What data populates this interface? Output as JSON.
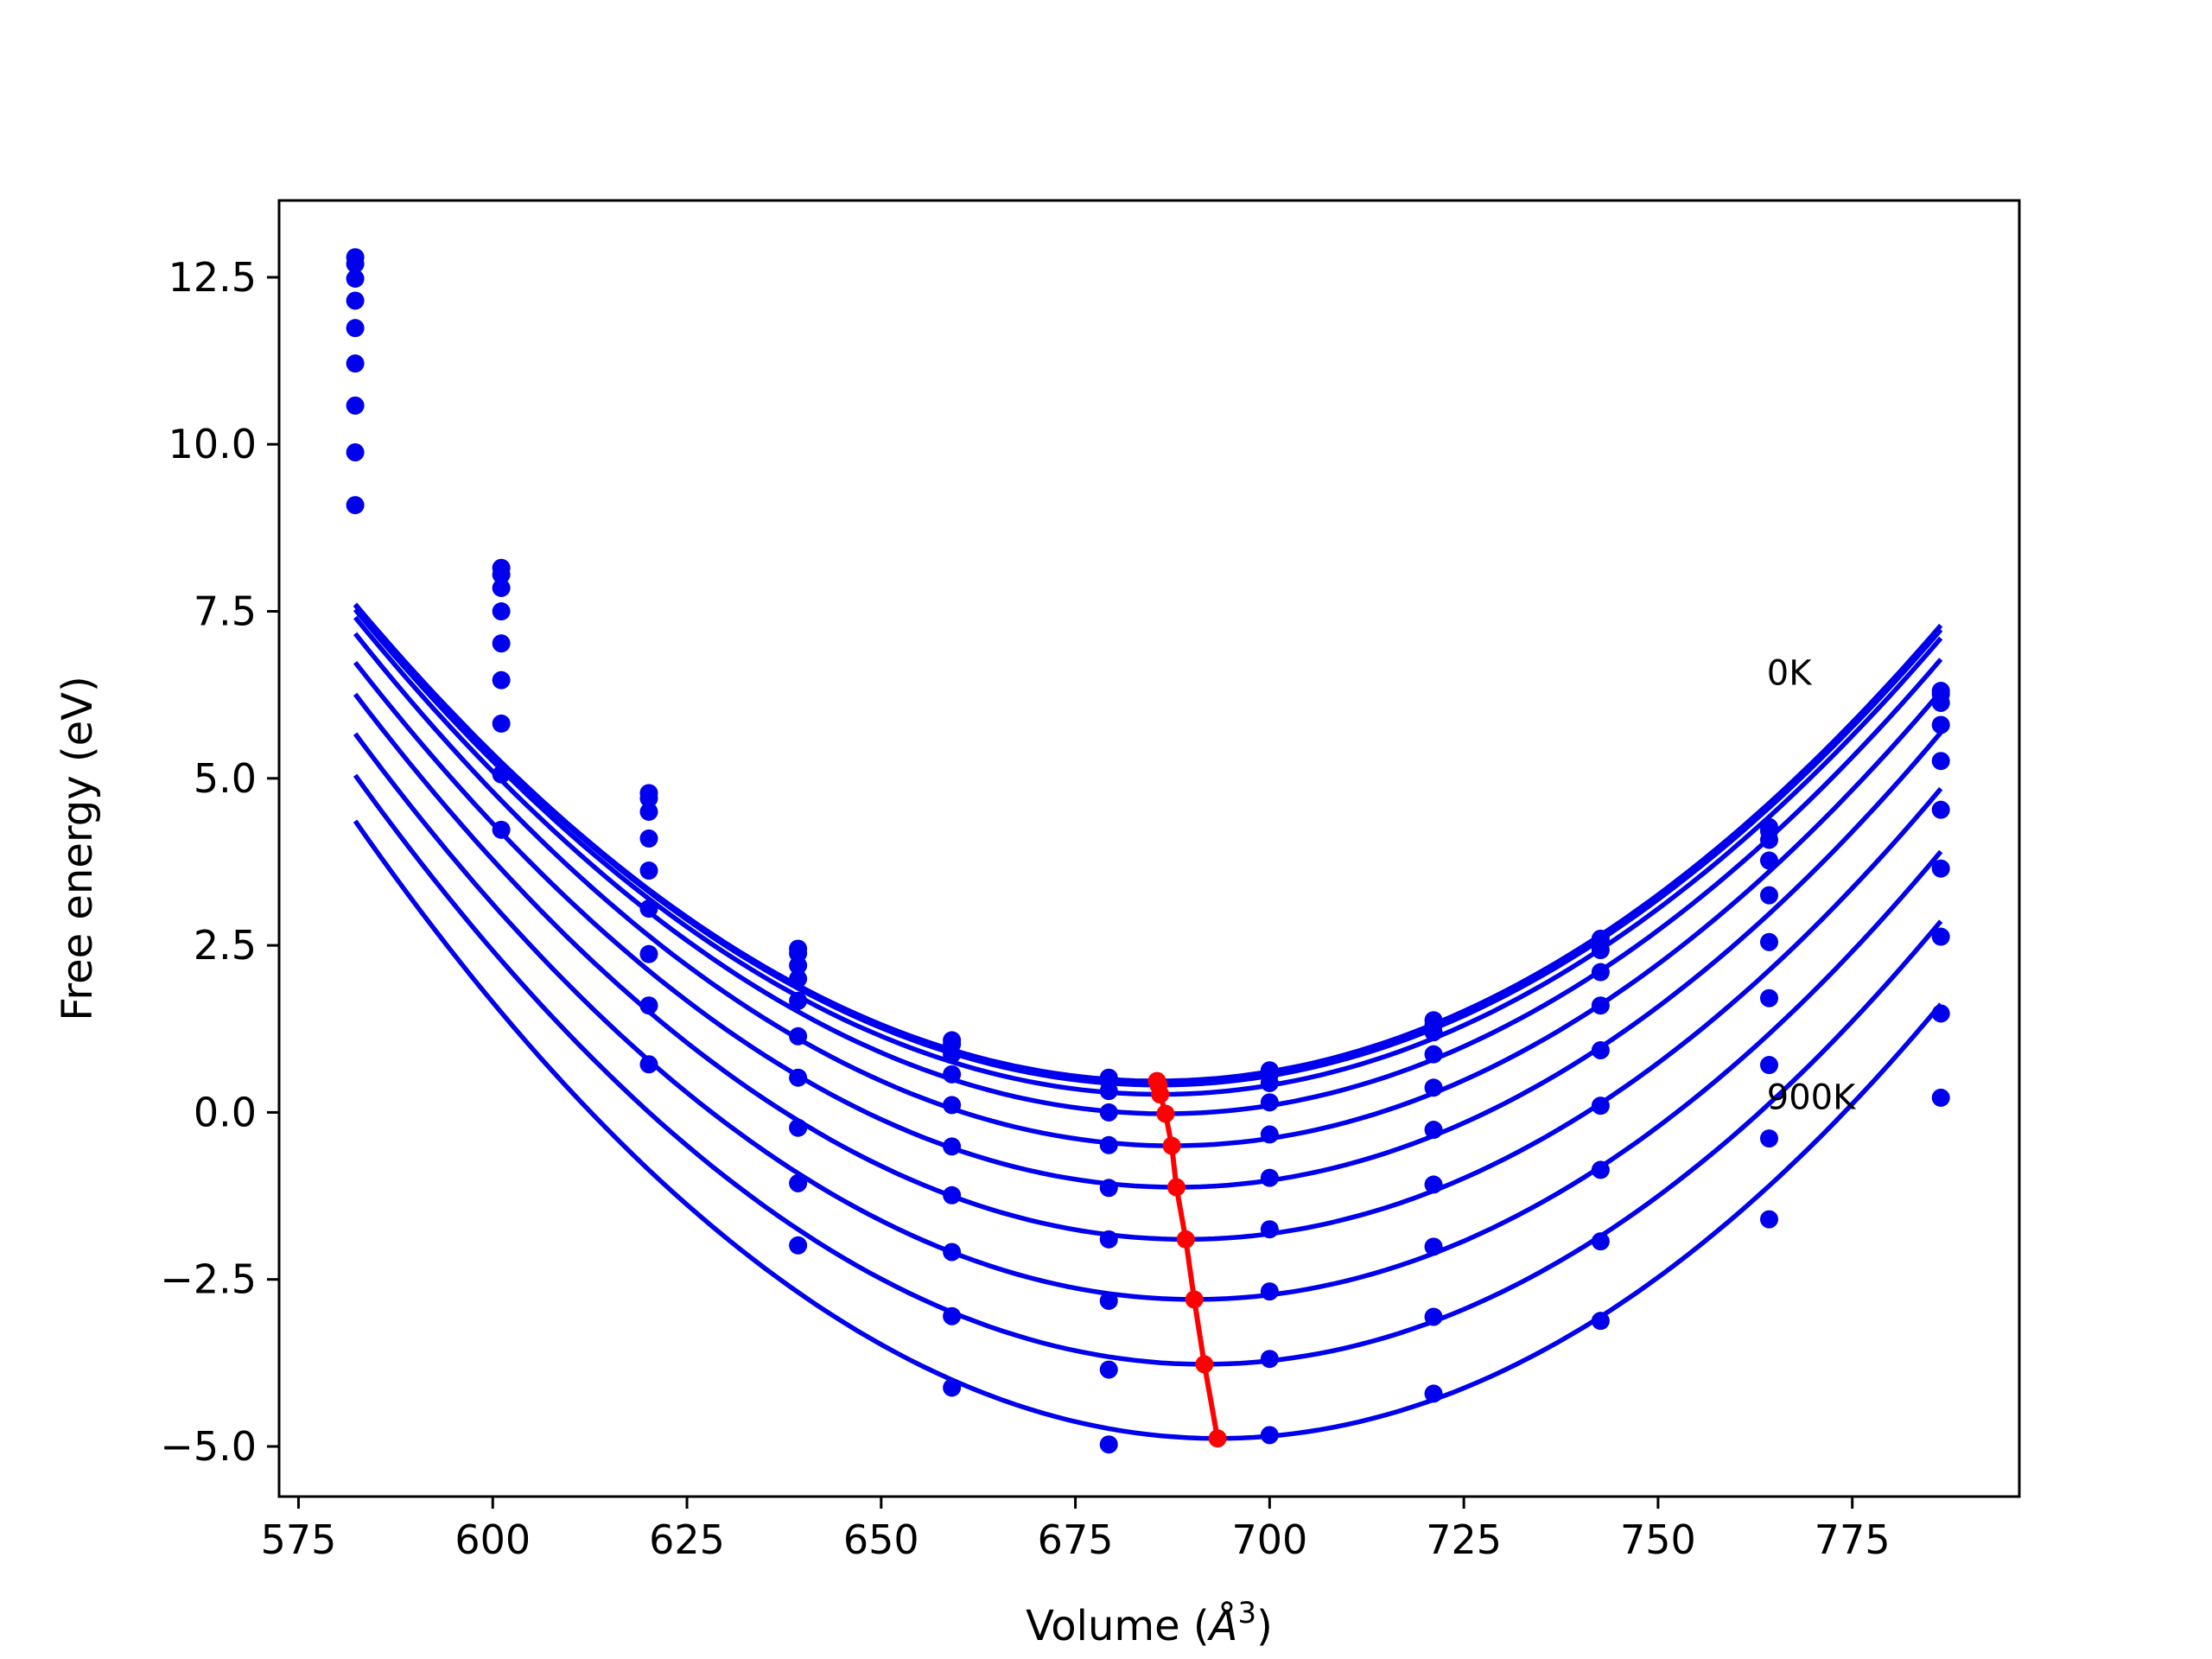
{
  "chart_data": {
    "type": "line",
    "title": "",
    "xlabel": "Volume (",
    "xlabel_symbol": "Å",
    "xlabel_exponent": "3",
    "xlabel_suffix": ")",
    "ylabel": "Free energy (eV)",
    "xlim": [
      572.5,
      796.5
    ],
    "ylim": [
      -5.75,
      13.65
    ],
    "xticks": [
      575,
      600,
      625,
      650,
      675,
      700,
      725,
      750,
      775
    ],
    "yticks": [
      12.5,
      10.0,
      7.5,
      5.0,
      2.5,
      0.0,
      -2.5,
      -5.0
    ],
    "ytick_labels": [
      "12.5",
      "10.0",
      "7.5",
      "5.0",
      "2.5",
      "0.0",
      "−2.5",
      "−5.0"
    ],
    "grid": false,
    "legend": null,
    "colors": {
      "curves": "#0000ee",
      "minima": "#ff0000",
      "axes": "#000000"
    },
    "annotations": [
      {
        "text": "0K",
        "x": 764,
        "y": 6.4
      },
      {
        "text": "900K",
        "x": 764,
        "y": 0.05
      }
    ],
    "x": [
      582.3,
      601.1,
      620.1,
      639.3,
      659.1,
      679.3,
      700.0,
      721.1,
      742.6,
      764.3,
      786.4
    ],
    "series": [
      {
        "values": [
          12.8,
          8.15,
          4.78,
          2.45,
          1.08,
          0.52,
          0.63,
          1.38,
          2.6,
          4.27,
          6.31
        ]
      },
      {
        "values": [
          12.7,
          8.05,
          4.7,
          2.38,
          1.02,
          0.47,
          0.57,
          1.31,
          2.54,
          4.21,
          6.26
        ]
      },
      {
        "values": [
          12.48,
          7.85,
          4.5,
          2.2,
          0.87,
          0.32,
          0.44,
          1.2,
          2.43,
          4.08,
          6.13
        ]
      },
      {
        "values": [
          12.15,
          7.5,
          4.1,
          2.0,
          0.57,
          0.0,
          0.15,
          0.87,
          2.1,
          3.77,
          5.8
        ]
      },
      {
        "values": [
          11.74,
          7.02,
          3.62,
          1.67,
          0.11,
          -0.49,
          -0.33,
          0.37,
          1.6,
          3.25,
          5.26
        ]
      },
      {
        "values": [
          11.21,
          6.47,
          3.05,
          1.14,
          -0.51,
          -1.13,
          -0.98,
          -0.26,
          0.93,
          2.55,
          4.53
        ]
      },
      {
        "values": [
          10.58,
          5.82,
          2.37,
          0.52,
          -1.24,
          -1.9,
          -1.75,
          -1.08,
          0.1,
          1.71,
          3.65
        ]
      },
      {
        "values": [
          9.88,
          5.06,
          1.6,
          -0.23,
          -2.09,
          -2.82,
          -2.68,
          -2.01,
          -0.86,
          0.71,
          2.63
        ]
      },
      {
        "values": [
          9.09,
          4.23,
          0.72,
          -1.06,
          -3.05,
          -3.85,
          -3.69,
          -3.06,
          -1.93,
          -0.39,
          1.48
        ]
      },
      {
        "values": [
          null,
          null,
          null,
          -1.99,
          -4.12,
          -4.97,
          -4.83,
          -4.21,
          -3.12,
          -1.6,
          0.22
        ]
      }
    ],
    "fits": [
      {
        "min_x": 685.5,
        "min_y": 0.47,
        "curvature": 0.00067
      },
      {
        "min_x": 685.7,
        "min_y": 0.41,
        "curvature": 0.000672
      },
      {
        "min_x": 685.9,
        "min_y": 0.27,
        "curvature": 0.000676
      },
      {
        "min_x": 686.6,
        "min_y": -0.02,
        "curvature": 0.000683
      },
      {
        "min_x": 687.4,
        "min_y": -0.5,
        "curvature": 0.000694
      },
      {
        "min_x": 688.0,
        "min_y": -1.12,
        "curvature": 0.000703
      },
      {
        "min_x": 689.2,
        "min_y": -1.9,
        "curvature": 0.000714
      },
      {
        "min_x": 690.3,
        "min_y": -2.8,
        "curvature": 0.000726
      },
      {
        "min_x": 691.6,
        "min_y": -3.77,
        "curvature": 0.000738
      },
      {
        "min_x": 693.3,
        "min_y": -4.88,
        "curvature": 0.00075
      }
    ],
    "minima": {
      "x": [
        685.5,
        685.7,
        685.9,
        686.6,
        687.4,
        688.0,
        689.2,
        690.3,
        691.6,
        693.3
      ],
      "y": [
        0.47,
        0.41,
        0.27,
        -0.02,
        -0.5,
        -1.12,
        -1.9,
        -2.8,
        -3.77,
        -4.88
      ]
    }
  }
}
